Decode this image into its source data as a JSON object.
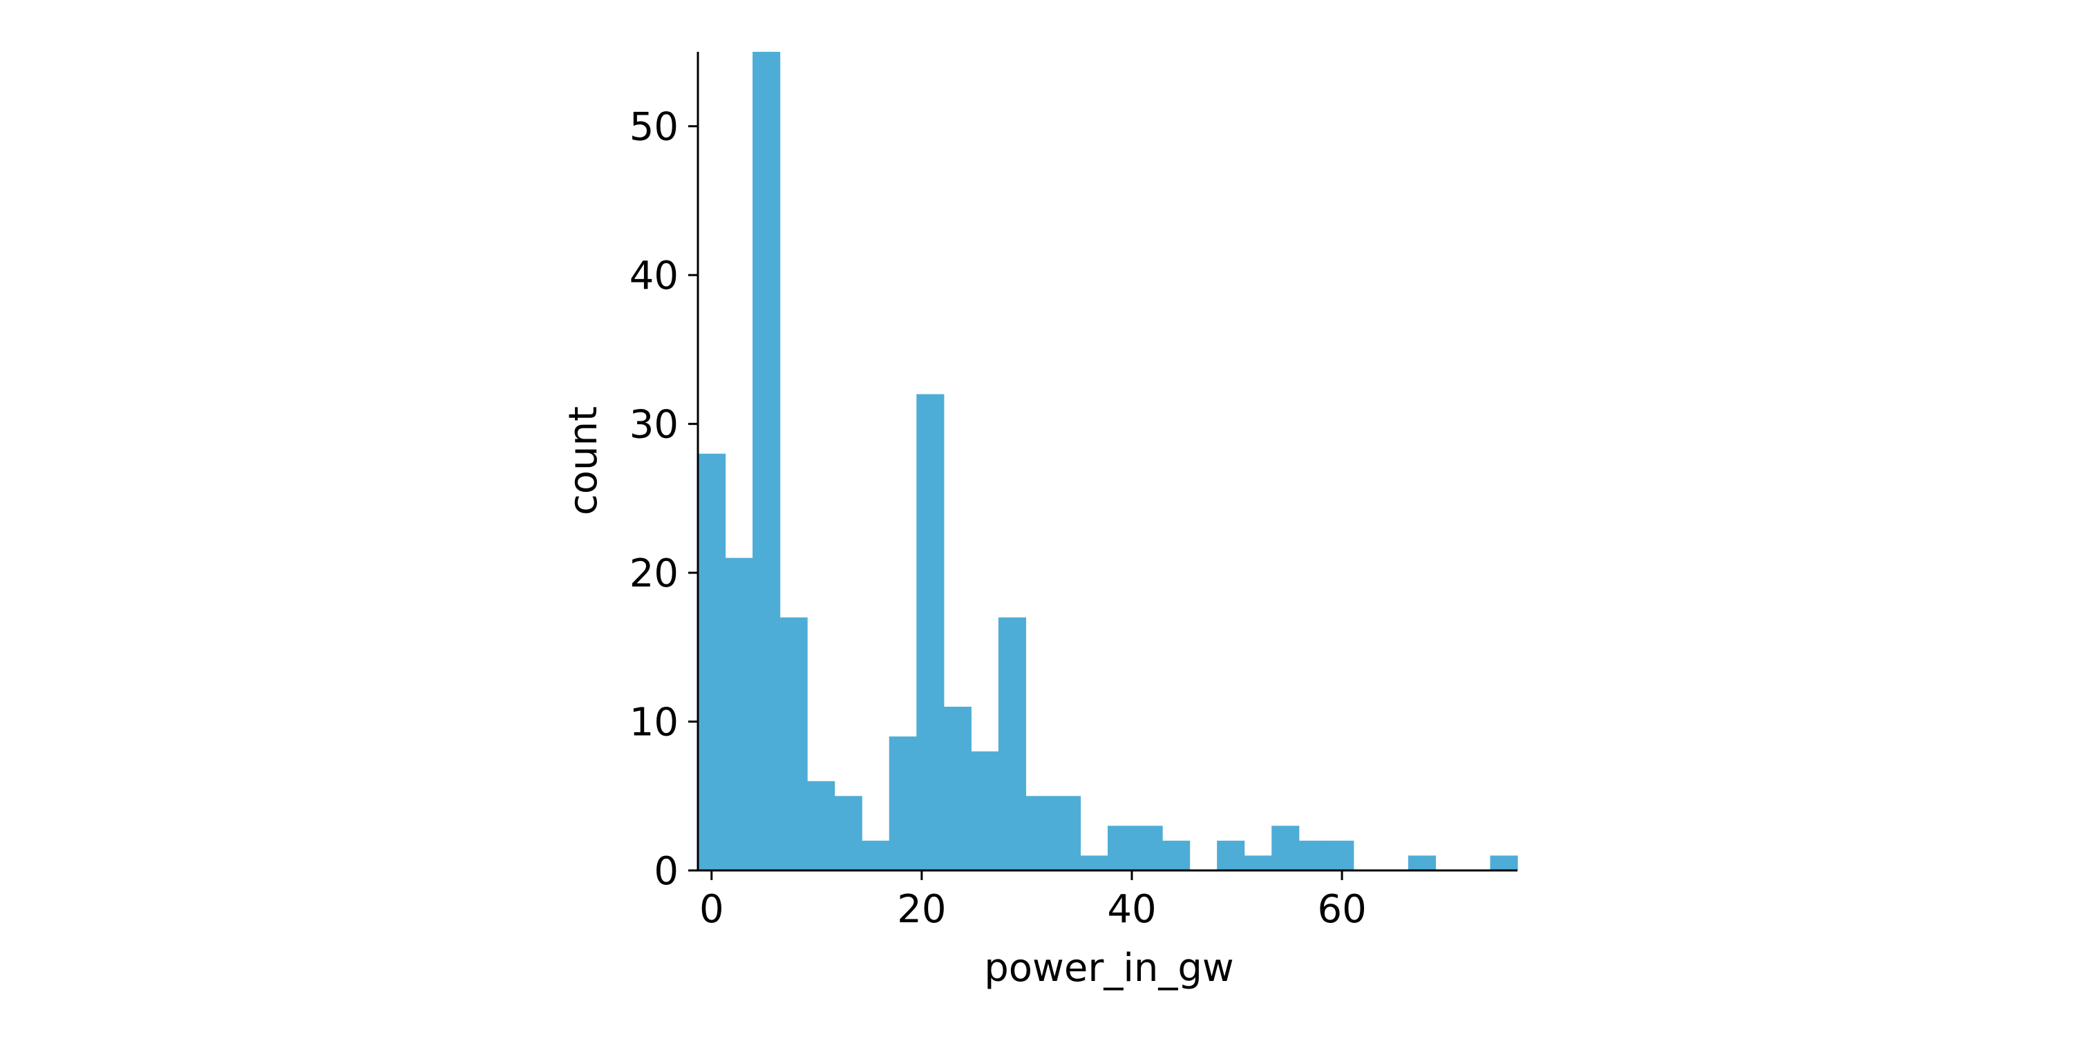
{
  "chart_data": {
    "type": "bar",
    "title": "",
    "xlabel": "power_in_gw",
    "ylabel": "count",
    "bin_edges": [
      -1.3,
      1.3,
      3.9,
      6.5,
      9.1,
      11.7,
      14.3,
      16.9,
      19.5,
      22.1,
      24.7,
      27.3,
      29.9,
      32.5,
      35.1,
      37.7,
      40.3,
      42.9,
      45.5,
      48.1,
      50.7,
      53.3,
      55.9,
      58.5,
      61.1,
      63.7,
      66.3,
      68.9,
      71.5,
      74.1,
      76.7
    ],
    "values": [
      28,
      21,
      55,
      17,
      6,
      5,
      2,
      9,
      32,
      11,
      8,
      17,
      5,
      5,
      1,
      3,
      3,
      2,
      0,
      2,
      1,
      3,
      2,
      2,
      0,
      0,
      1,
      0,
      0,
      1
    ],
    "xlim": [
      -1.3,
      76.7
    ],
    "ylim": [
      0,
      55
    ],
    "xticks": [
      0,
      20,
      40,
      60
    ],
    "xtick_labels": [
      "0",
      "20",
      "40",
      "60"
    ],
    "yticks": [
      0,
      10,
      20,
      30,
      40,
      50
    ],
    "ytick_labels": [
      "0",
      "10",
      "20",
      "30",
      "40",
      "50"
    ],
    "grid": false,
    "colors": {
      "bar": "#4eadd6",
      "axis": "#000000"
    }
  }
}
